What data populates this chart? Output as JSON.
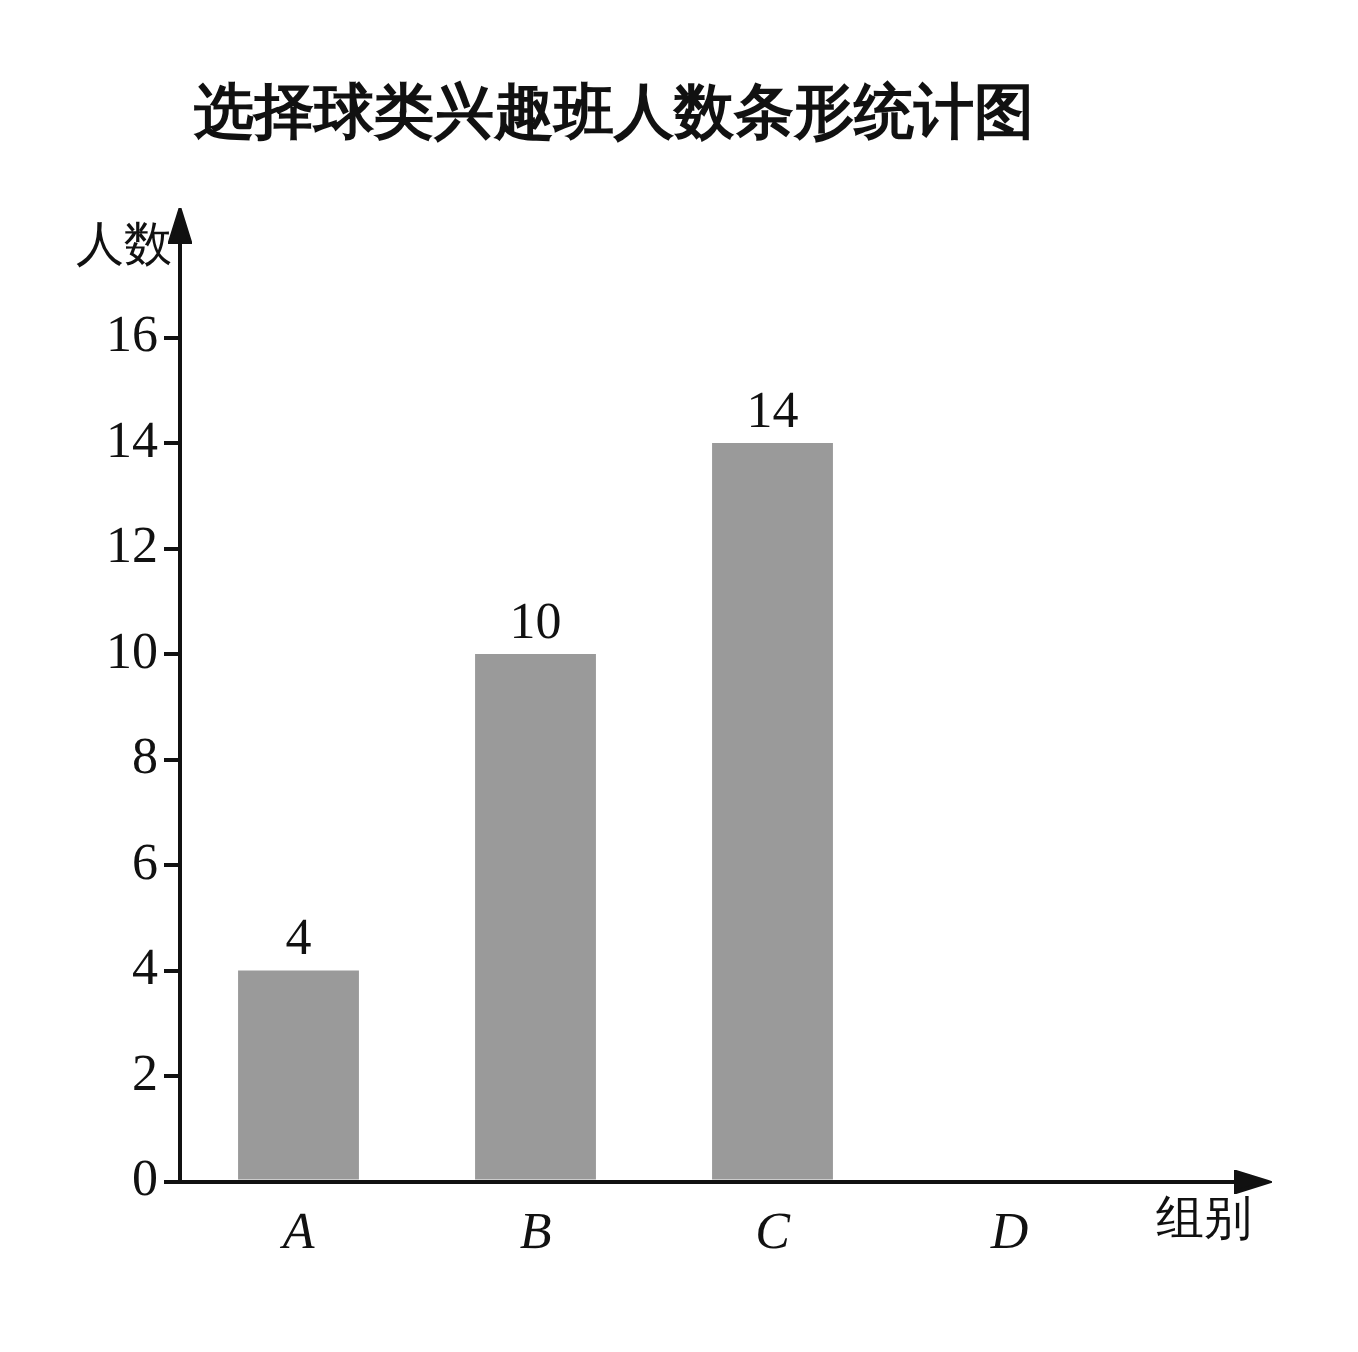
{
  "chart_data": {
    "type": "bar",
    "title": "选择球类兴趣班人数条形统计图",
    "xlabel": "组别",
    "ylabel": "人数",
    "categories": [
      "A",
      "B",
      "C",
      "D"
    ],
    "values": [
      4,
      10,
      14,
      null
    ],
    "color": "#9a9a9a",
    "ylim": [
      0,
      18
    ],
    "yticks": [
      0,
      2,
      4,
      6,
      8,
      10,
      12,
      14,
      16
    ],
    "data_labels": true,
    "grid": false,
    "legend": false
  }
}
